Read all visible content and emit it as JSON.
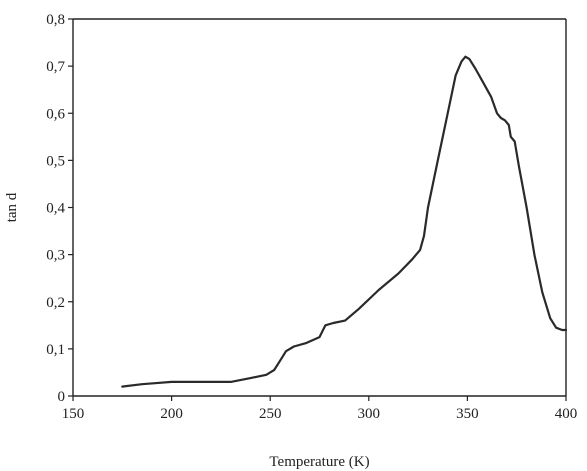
{
  "chart_data": {
    "type": "line",
    "title": "",
    "xlabel": "Temperature (K)",
    "ylabel": "tan d",
    "xlim": [
      150,
      400
    ],
    "ylim": [
      0,
      0.8
    ],
    "grid": false,
    "legend": "none",
    "x_ticks": [
      150,
      200,
      250,
      300,
      350,
      400
    ],
    "x_tick_labels": [
      "150",
      "200",
      "250",
      "300",
      "350",
      "400"
    ],
    "y_ticks": [
      0,
      0.1,
      0.2,
      0.3,
      0.4,
      0.5,
      0.6,
      0.7,
      0.8
    ],
    "y_tick_labels": [
      "0",
      "0,1",
      "0,2",
      "0,3",
      "0,4",
      "0,5",
      "0,6",
      "0,7",
      "0,8"
    ],
    "series": [
      {
        "color": "#2a2a2a",
        "x": [
          175,
          185,
          200,
          215,
          230,
          240,
          248,
          252,
          255,
          258,
          262,
          268,
          275,
          278,
          282,
          288,
          295,
          305,
          315,
          322,
          326,
          328,
          330,
          335,
          340,
          344,
          347,
          349,
          351,
          354,
          358,
          362,
          365,
          367,
          369,
          371,
          372,
          374,
          376,
          380,
          384,
          388,
          392,
          395,
          398,
          400
        ],
        "y": [
          0.02,
          0.025,
          0.03,
          0.03,
          0.03,
          0.038,
          0.045,
          0.055,
          0.075,
          0.095,
          0.105,
          0.112,
          0.125,
          0.15,
          0.155,
          0.16,
          0.185,
          0.225,
          0.26,
          0.29,
          0.31,
          0.34,
          0.4,
          0.5,
          0.6,
          0.68,
          0.71,
          0.72,
          0.715,
          0.695,
          0.665,
          0.635,
          0.6,
          0.59,
          0.585,
          0.575,
          0.55,
          0.54,
          0.49,
          0.4,
          0.3,
          0.22,
          0.165,
          0.145,
          0.14,
          0.14
        ]
      }
    ]
  }
}
